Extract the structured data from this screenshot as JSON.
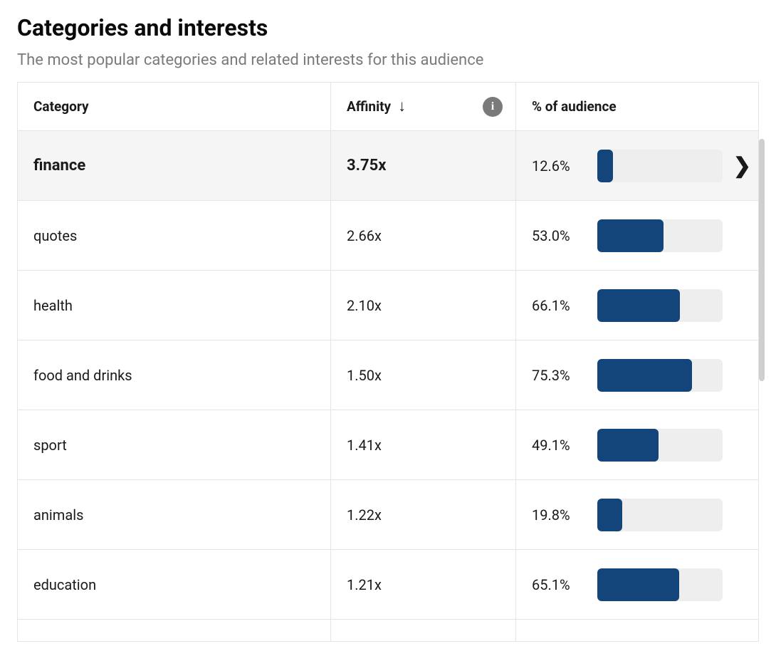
{
  "title": "Categories and interests",
  "subtitle": "The most popular categories and related interests for this audience",
  "columns": {
    "category": "Category",
    "affinity": "Affinity",
    "audience": "% of audience"
  },
  "sort": {
    "column": "affinity",
    "direction": "desc"
  },
  "colors": {
    "bar_fill": "#14457a",
    "bar_track": "#eeeeee",
    "row_selected_bg": "#f5f5f5",
    "border": "#e5e5e5",
    "text": "#1a1a1a",
    "subtitle": "#7a7a7a",
    "info_bg": "#7a7a7a"
  },
  "bar_max_percent": 100,
  "rows": [
    {
      "category": "finance",
      "affinity": "3.75x",
      "percent": 12.6,
      "percent_label": "12.6%",
      "selected": true,
      "has_chevron": true
    },
    {
      "category": "quotes",
      "affinity": "2.66x",
      "percent": 53.0,
      "percent_label": "53.0%",
      "selected": false,
      "has_chevron": false
    },
    {
      "category": "health",
      "affinity": "2.10x",
      "percent": 66.1,
      "percent_label": "66.1%",
      "selected": false,
      "has_chevron": false
    },
    {
      "category": "food and drinks",
      "affinity": "1.50x",
      "percent": 75.3,
      "percent_label": "75.3%",
      "selected": false,
      "has_chevron": false
    },
    {
      "category": "sport",
      "affinity": "1.41x",
      "percent": 49.1,
      "percent_label": "49.1%",
      "selected": false,
      "has_chevron": false
    },
    {
      "category": "animals",
      "affinity": "1.22x",
      "percent": 19.8,
      "percent_label": "19.8%",
      "selected": false,
      "has_chevron": false
    },
    {
      "category": "education",
      "affinity": "1.21x",
      "percent": 65.1,
      "percent_label": "65.1%",
      "selected": false,
      "has_chevron": false
    }
  ]
}
